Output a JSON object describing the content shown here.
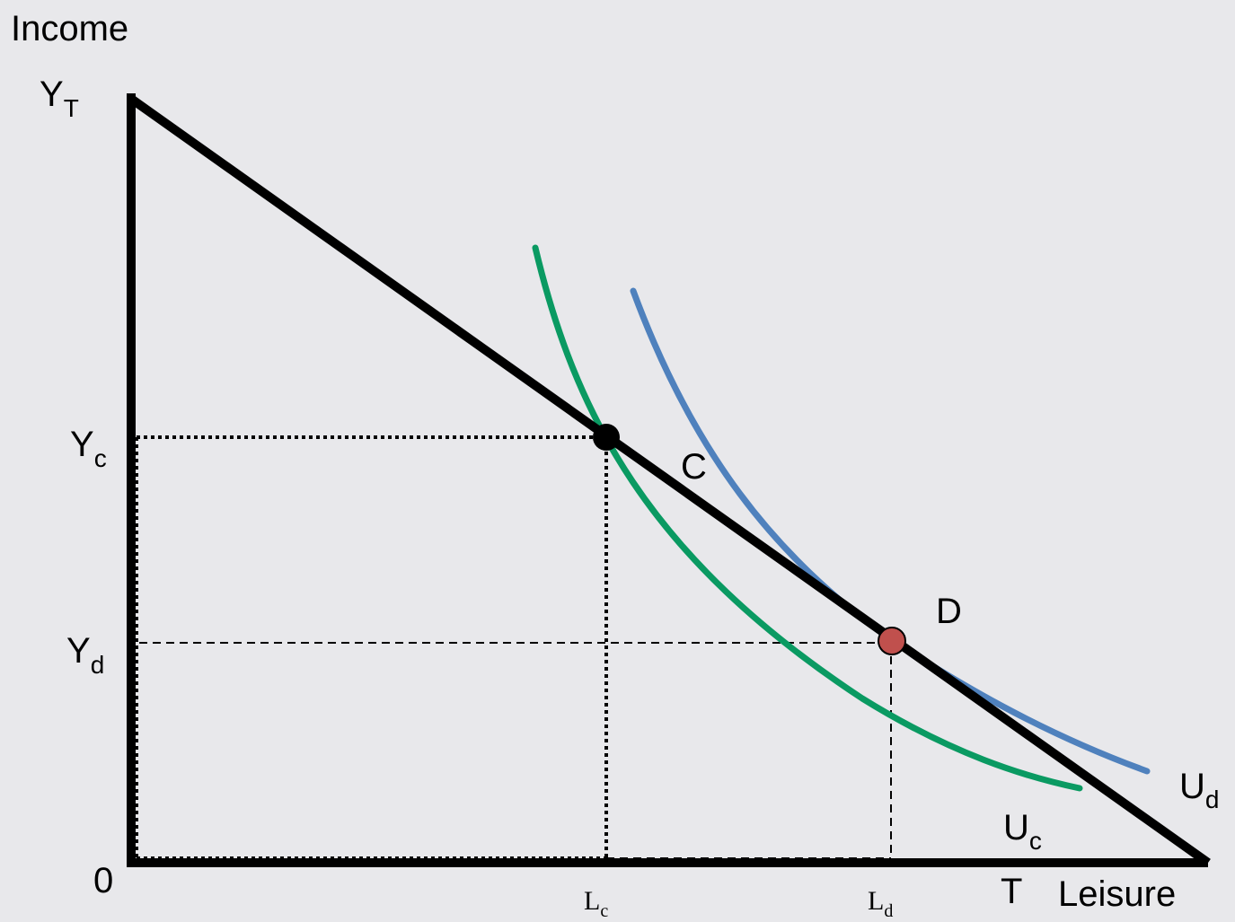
{
  "axes": {
    "y_title": "Income",
    "x_title": "Leisure",
    "origin": "0",
    "x_end": "T"
  },
  "y_ticks": [
    {
      "base": "Y",
      "sub": "T"
    },
    {
      "base": "Y",
      "sub": "c"
    },
    {
      "base": "Y",
      "sub": "d"
    }
  ],
  "x_ticks": [
    {
      "base": "L",
      "sub": "c"
    },
    {
      "base": "L",
      "sub": "d"
    }
  ],
  "points": [
    {
      "label": "C",
      "color": "#000000"
    },
    {
      "label": "D",
      "color": "#c0504d"
    }
  ],
  "curves": [
    {
      "base": "U",
      "sub": "c",
      "color": "#0a9a62"
    },
    {
      "base": "U",
      "sub": "d",
      "color": "#4f81bd"
    }
  ]
}
